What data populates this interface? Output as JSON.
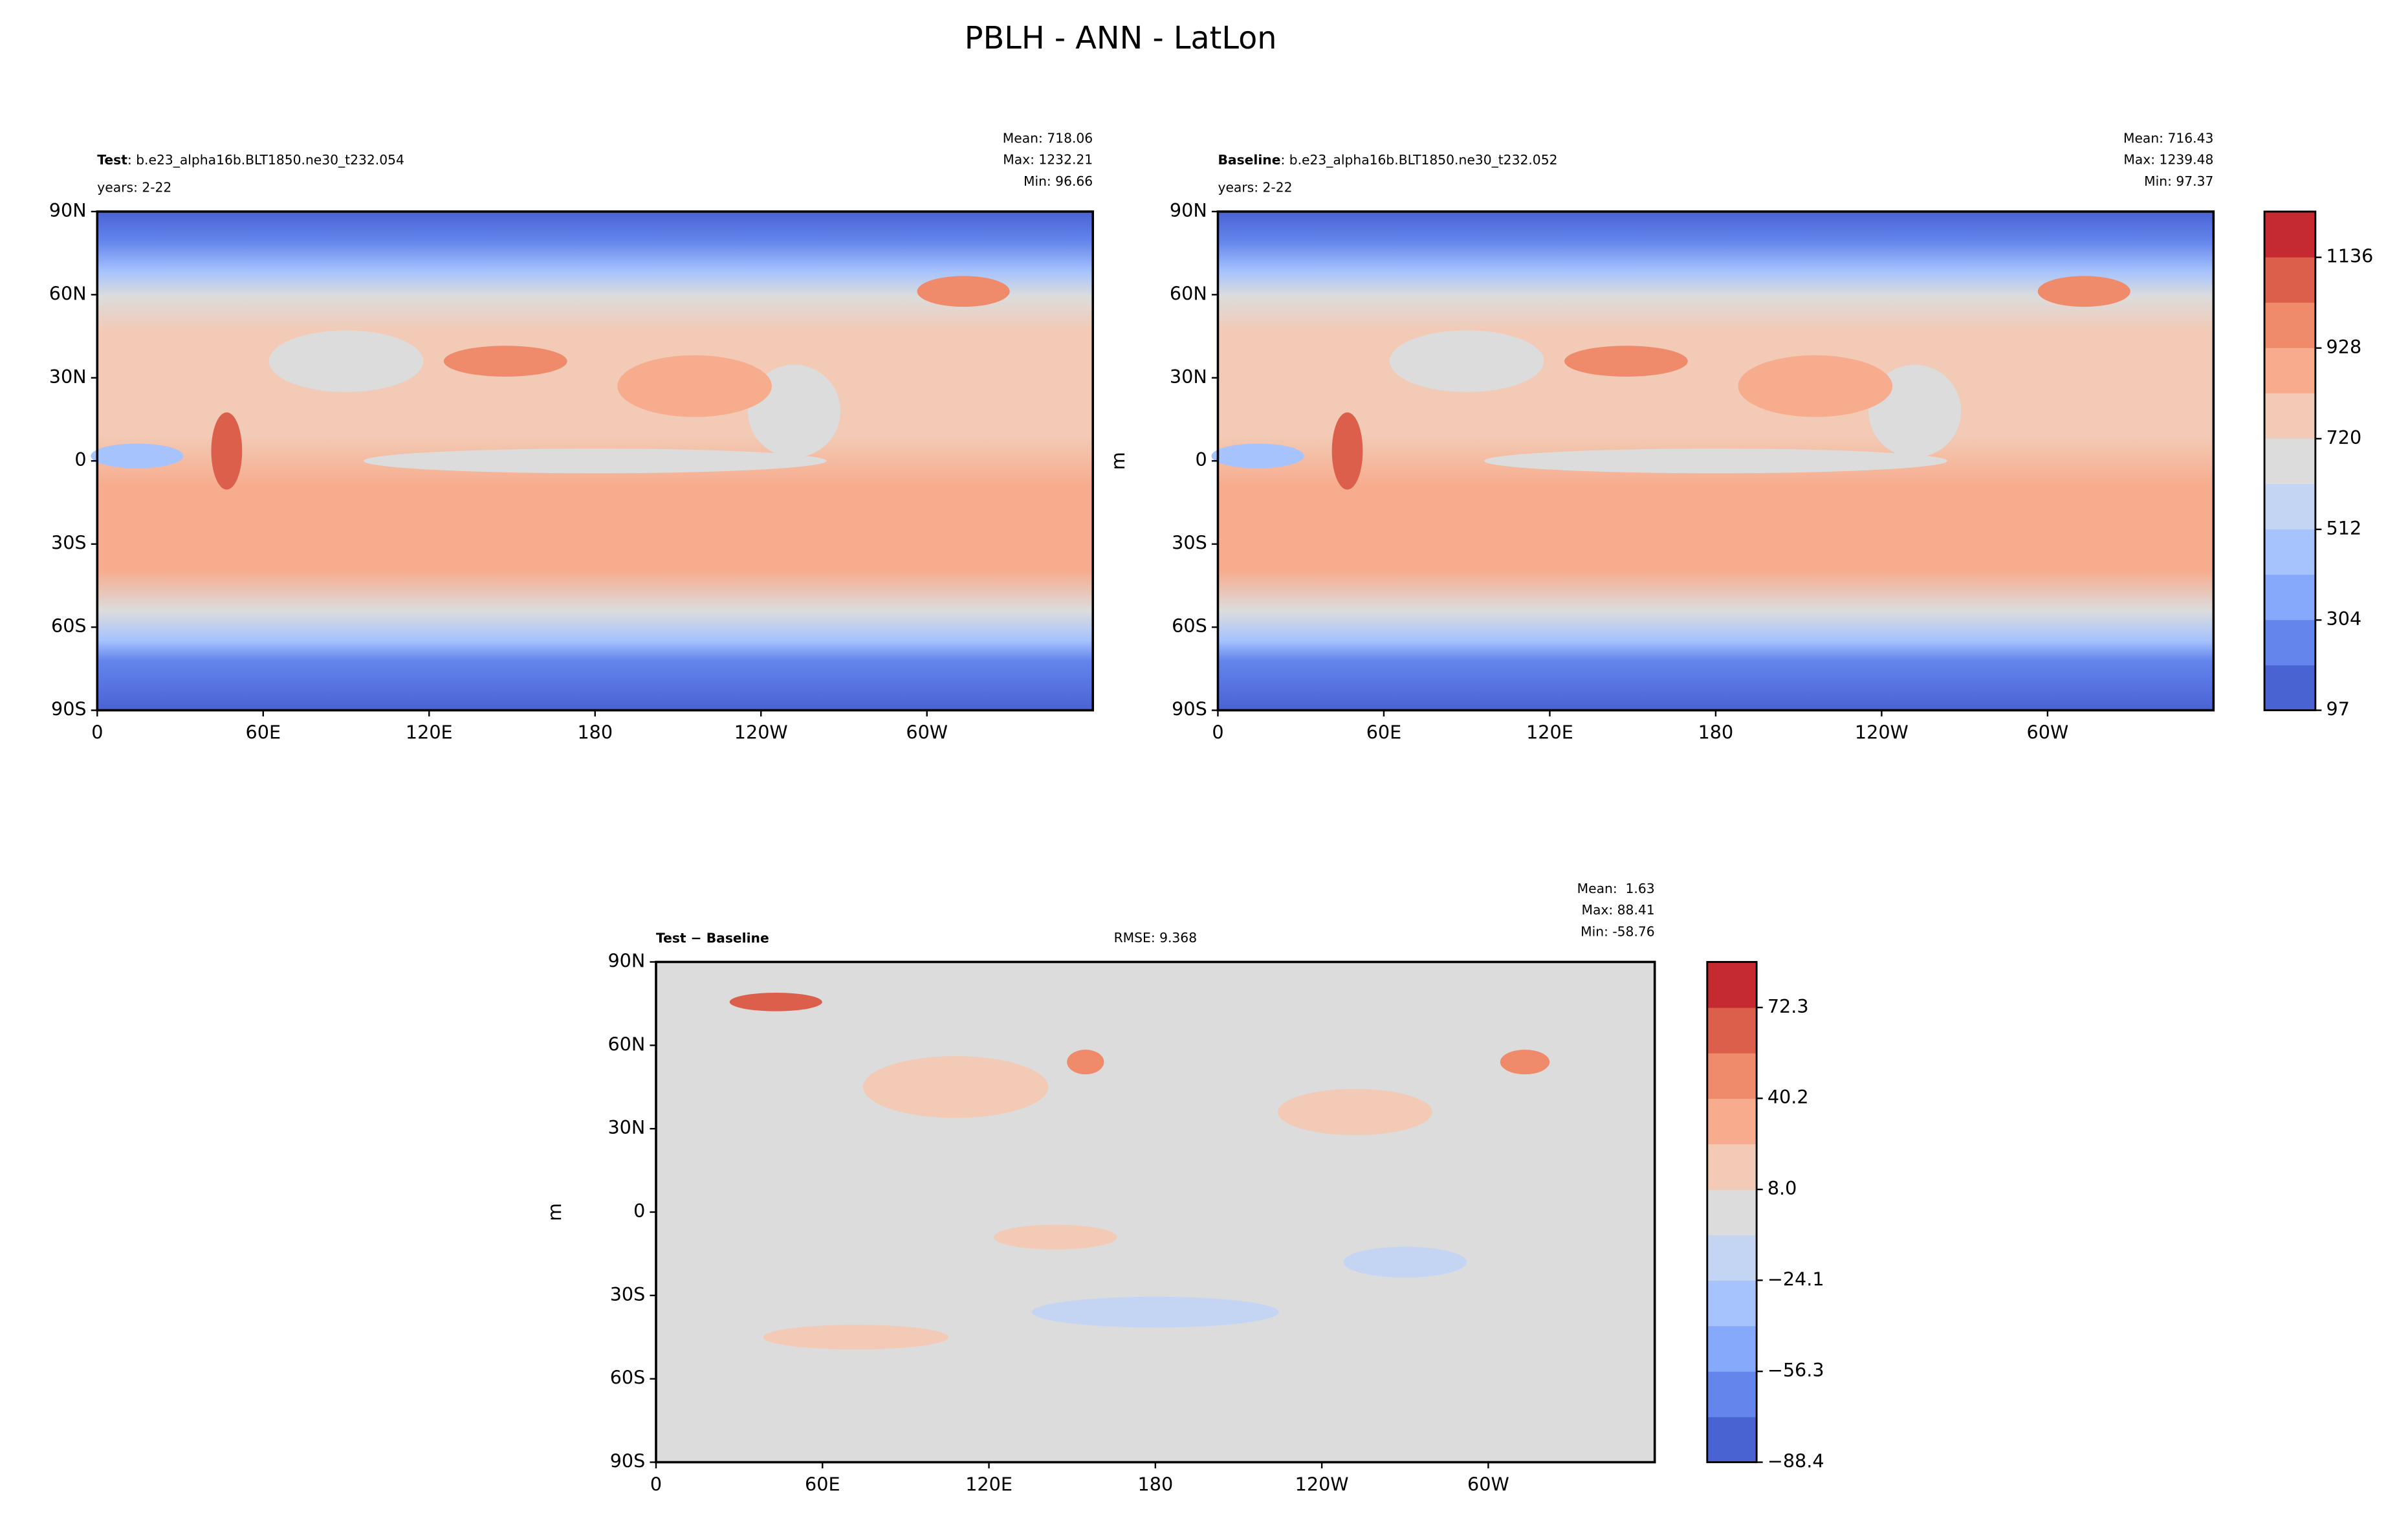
{
  "title": "PBLH - ANN - LatLon",
  "chart_data": [
    {
      "type": "map",
      "label": "Test",
      "case": ": b.e23_alpha16b.BLT1850.ne30_t232.054",
      "years": "years: 2-22",
      "stats": [
        "Mean: 718.06",
        "Max: 1232.21",
        "Min: 96.66"
      ],
      "xlim": [
        0,
        360
      ],
      "xticks": [
        0,
        {
          "value": 60,
          "label": "60E"
        },
        {
          "value": 120,
          "label": "120E"
        },
        180,
        {
          "value": 240,
          "label": "120W"
        },
        {
          "value": 300,
          "label": "60W"
        }
      ],
      "ylim": [
        -90,
        90
      ],
      "yticks": [
        {
          "value": 90,
          "label": "90N"
        },
        {
          "value": 60,
          "label": "60N"
        },
        {
          "value": 30,
          "label": "30N"
        },
        0,
        {
          "value": -30,
          "label": "30S"
        },
        {
          "value": -60,
          "label": "60S"
        },
        {
          "value": -90,
          "label": "90S"
        }
      ]
    },
    {
      "type": "map",
      "label": "Baseline",
      "case": ": b.e23_alpha16b.BLT1850.ne30_t232.052",
      "years": "years: 2-22",
      "stats": [
        "Mean: 716.43",
        "Max: 1239.48",
        "Min: 97.37"
      ],
      "ylabel": "m",
      "xlim": [
        0,
        360
      ],
      "xticks": [
        0,
        {
          "value": 60,
          "label": "60E"
        },
        {
          "value": 120,
          "label": "120E"
        },
        180,
        {
          "value": 240,
          "label": "120W"
        },
        {
          "value": 300,
          "label": "60W"
        }
      ],
      "ylim": [
        -90,
        90
      ],
      "yticks": [
        {
          "value": 90,
          "label": "90N"
        },
        {
          "value": 60,
          "label": "60N"
        },
        {
          "value": 30,
          "label": "30N"
        },
        0,
        {
          "value": -30,
          "label": "30S"
        },
        {
          "value": -60,
          "label": "60S"
        },
        {
          "value": -90,
          "label": "90S"
        }
      ],
      "colorbar": {
        "clim": [
          97,
          1241
        ],
        "ticks": [
          97,
          304,
          512,
          720,
          928,
          1136
        ],
        "colors": [
          "#4a63d3",
          "#6485ec",
          "#86a9fc",
          "#a6c3fd",
          "#c4d5f3",
          "#dcdcdc",
          "#f2cab5",
          "#f7ac8e",
          "#ef8a6a",
          "#dc5f4b",
          "#c52a30"
        ]
      }
    },
    {
      "type": "map",
      "label": "Test",
      "sep": " − ",
      "label_b": "Baseline",
      "rmse": "RMSE: 9.368",
      "stats": [
        "Mean:  1.63",
        "Max: 88.41",
        "Min: -58.76"
      ],
      "ylabel": "m",
      "xlim": [
        0,
        360
      ],
      "xticks": [
        0,
        {
          "value": 60,
          "label": "60E"
        },
        {
          "value": 120,
          "label": "120E"
        },
        180,
        {
          "value": 240,
          "label": "120W"
        },
        {
          "value": 300,
          "label": "60W"
        }
      ],
      "ylim": [
        -90,
        90
      ],
      "yticks": [
        {
          "value": 90,
          "label": "90N"
        },
        {
          "value": 60,
          "label": "60N"
        },
        {
          "value": 30,
          "label": "30N"
        },
        0,
        {
          "value": -30,
          "label": "30S"
        },
        {
          "value": -60,
          "label": "60S"
        },
        {
          "value": -90,
          "label": "90S"
        }
      ],
      "colorbar": {
        "clim": [
          -88.4,
          88.4
        ],
        "ticks": [
          {
            "value": -88.4,
            "label": "−88.4"
          },
          {
            "value": -56.3,
            "label": "−56.3"
          },
          {
            "value": -24.1,
            "label": "−24.1"
          },
          {
            "value": 8.0,
            "label": "8.0"
          },
          {
            "value": 40.2,
            "label": "40.2"
          },
          {
            "value": 72.3,
            "label": "72.3"
          }
        ],
        "colors": [
          "#4a63d3",
          "#6485ec",
          "#86a9fc",
          "#a6c3fd",
          "#c4d5f3",
          "#dcdcdc",
          "#f2cab5",
          "#f7ac8e",
          "#ef8a6a",
          "#dc5f4b",
          "#c52a30"
        ]
      }
    }
  ]
}
